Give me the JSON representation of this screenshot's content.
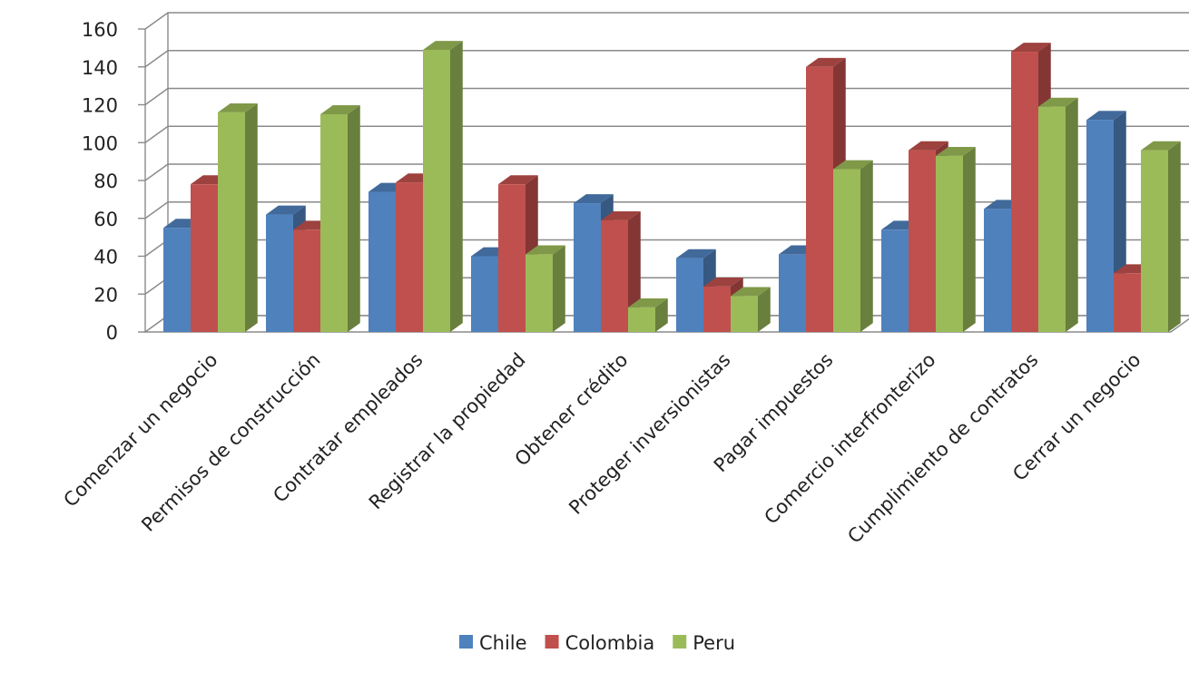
{
  "chart_data": {
    "type": "bar",
    "categories": [
      "Comenzar un negocio",
      "Permisos de construcción",
      "Contratar empleados",
      "Registrar la propiedad",
      "Obtener crédito",
      "Proteger inversionistas",
      "Pagar impuestos",
      "Comercio interfronterizo",
      "Cumplimiento de contratos",
      "Cerrar un negocio"
    ],
    "series": [
      {
        "name": "Chile",
        "values": [
          55,
          62,
          74,
          40,
          68,
          39,
          41,
          54,
          65,
          112
        ]
      },
      {
        "name": "Colombia",
        "values": [
          78,
          54,
          79,
          78,
          59,
          24,
          140,
          96,
          148,
          31
        ]
      },
      {
        "name": "Peru",
        "values": [
          116,
          115,
          149,
          41,
          13,
          19,
          86,
          93,
          119,
          96
        ]
      }
    ],
    "ylim": [
      0,
      160
    ],
    "yticks": [
      0,
      20,
      40,
      60,
      80,
      100,
      120,
      140,
      160
    ],
    "grid": true,
    "legend_position": "bottom",
    "style": "3d-clustered-column",
    "colors": {
      "Chile": "#4f81bd",
      "Colombia": "#c0504d",
      "Peru": "#9bbb59"
    }
  }
}
